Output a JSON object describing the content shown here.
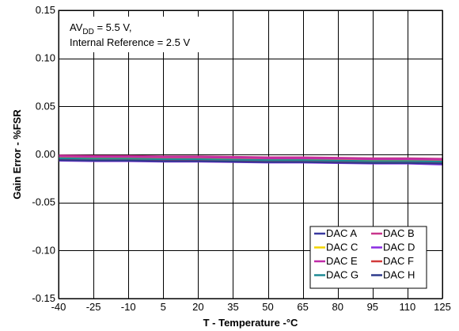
{
  "chart_data": {
    "type": "line",
    "title": "",
    "xlabel": "T - Temperature -°C",
    "ylabel": "Gain Error - %FSR",
    "xlim": [
      -40,
      125
    ],
    "ylim": [
      -0.15,
      0.15
    ],
    "x_ticks": [
      "-40",
      "-25",
      "-10",
      "5",
      "20",
      "35",
      "50",
      "65",
      "80",
      "95",
      "110",
      "125"
    ],
    "y_ticks": [
      "0.15",
      "0.10",
      "0.05",
      "0.00",
      "-0.05",
      "-0.10",
      "-0.15"
    ],
    "grid": true,
    "legend_position": "bottom-right",
    "annotation": {
      "main": "AV",
      "subscript": "DD",
      "line1_rest": " = 5.5 V,",
      "line2": "Internal Reference = 2.5 V"
    },
    "x": [
      -40,
      -25,
      -10,
      5,
      20,
      35,
      50,
      65,
      80,
      95,
      110,
      125
    ],
    "series": [
      {
        "name": "DAC A",
        "color": "#3a3aa0",
        "values": [
          -0.0045,
          -0.005,
          -0.005,
          -0.005,
          -0.0055,
          -0.006,
          -0.0055,
          -0.006,
          -0.0065,
          -0.007,
          -0.0065,
          -0.0075
        ]
      },
      {
        "name": "DAC B",
        "color": "#c8358c",
        "values": [
          -0.001,
          -0.0015,
          -0.0015,
          -0.002,
          -0.002,
          -0.0025,
          -0.003,
          -0.003,
          -0.0035,
          -0.004,
          -0.004,
          -0.0045
        ]
      },
      {
        "name": "DAC C",
        "color": "#f2d400",
        "values": [
          -0.003,
          -0.0035,
          -0.0035,
          -0.004,
          -0.004,
          -0.0045,
          -0.005,
          -0.005,
          -0.0055,
          -0.006,
          -0.006,
          -0.0065
        ]
      },
      {
        "name": "DAC D",
        "color": "#8a2be2",
        "values": [
          -0.0065,
          -0.007,
          -0.007,
          -0.0075,
          -0.0075,
          -0.008,
          -0.0085,
          -0.0085,
          -0.009,
          -0.0095,
          -0.0095,
          -0.0105
        ]
      },
      {
        "name": "DAC E",
        "color": "#c02ca8",
        "values": [
          -0.002,
          -0.0025,
          -0.0025,
          -0.003,
          -0.003,
          -0.0035,
          -0.004,
          -0.004,
          -0.0045,
          -0.005,
          -0.005,
          -0.0055
        ]
      },
      {
        "name": "DAC F",
        "color": "#d23a3a",
        "values": [
          -0.0055,
          -0.006,
          -0.006,
          -0.0065,
          -0.0065,
          -0.007,
          -0.0075,
          -0.0075,
          -0.008,
          -0.0085,
          -0.0085,
          -0.009
        ]
      },
      {
        "name": "DAC G",
        "color": "#1e8a94",
        "values": [
          -0.004,
          -0.0045,
          -0.0045,
          -0.005,
          -0.005,
          -0.0055,
          -0.006,
          -0.006,
          -0.0065,
          -0.007,
          -0.007,
          -0.0075
        ]
      },
      {
        "name": "DAC H",
        "color": "#2d3a8c",
        "values": [
          -0.006,
          -0.0065,
          -0.0065,
          -0.007,
          -0.007,
          -0.0075,
          -0.008,
          -0.008,
          -0.0085,
          -0.009,
          -0.009,
          -0.0095
        ]
      }
    ]
  }
}
